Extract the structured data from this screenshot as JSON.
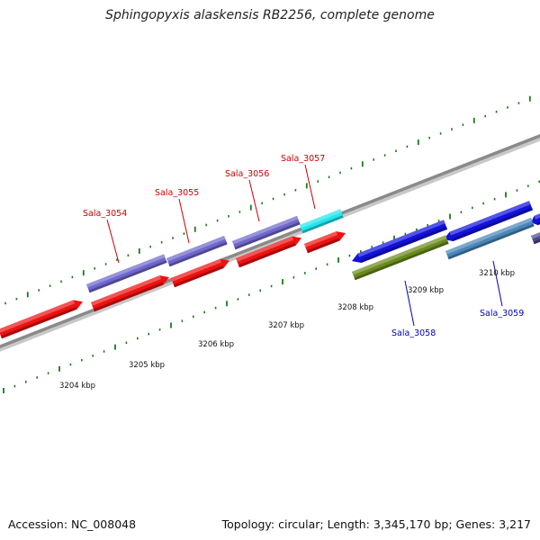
{
  "title": "Sphingopyxis alaskensis RB2256, complete genome",
  "footer": {
    "accession": "Accession: NC_008048",
    "summary": "Topology: circular; Length: 3,345,170 bp; Genes: 3,217"
  },
  "colors": {
    "backbone": "#8a8a8a",
    "tick": "#1a7a1a",
    "label_forward": "#cc0000",
    "label_reverse": "#0000bb",
    "red": "#ee1111",
    "slate": "#6f67cc",
    "cyan": "#22e6ee",
    "blue": "#1111dd",
    "steel": "#4a86b8",
    "olive": "#6a8a1e"
  },
  "scale_labels": [
    "3204 kbp",
    "3205 kbp",
    "3206 kbp",
    "3207 kbp",
    "3208 kbp",
    "3209 kbp",
    "3210 kbp"
  ],
  "gene_labels": {
    "forward": [
      "Sala_3054",
      "Sala_3055",
      "Sala_3056",
      "Sala_3057"
    ],
    "reverse": [
      "Sala_3058",
      "Sala_3059"
    ]
  }
}
